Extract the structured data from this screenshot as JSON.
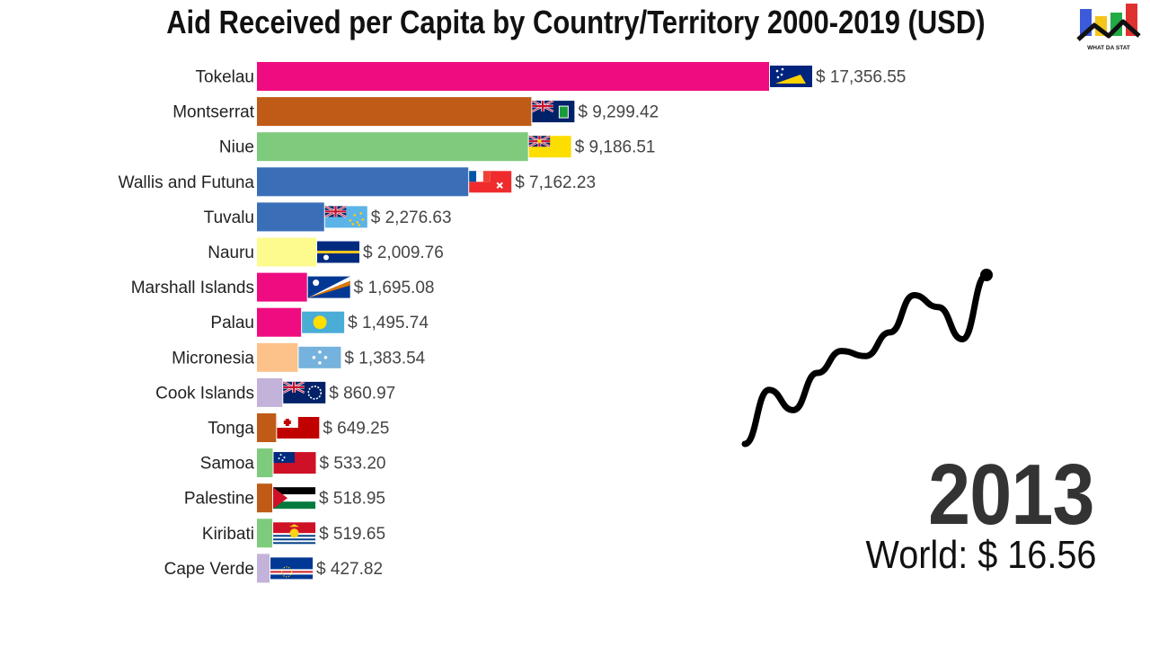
{
  "chart_data": {
    "type": "bar",
    "orientation": "horizontal",
    "title": "Aid Received per Capita by Country/Territory 2000-2019 (USD)",
    "xlim": [
      0,
      17356.55
    ],
    "grid": false,
    "categories": [
      "Tokelau",
      "Montserrat",
      "Niue",
      "Wallis and Futuna",
      "Tuvalu",
      "Nauru",
      "Marshall Islands",
      "Palau",
      "Micronesia",
      "Cook Islands",
      "Tonga",
      "Samoa",
      "Palestine",
      "Kiribati",
      "Cape Verde"
    ],
    "values": [
      17356.55,
      9299.42,
      9186.51,
      7162.23,
      2276.63,
      2009.76,
      1695.08,
      1495.74,
      1383.54,
      860.97,
      649.25,
      533.2,
      518.95,
      519.65,
      427.82
    ],
    "value_labels": [
      "$ 17,356.55",
      "$ 9,299.42",
      "$ 9,186.51",
      "$ 7,162.23",
      "$ 2,276.63",
      "$ 2,009.76",
      "$ 1,695.08",
      "$ 1,495.74",
      "$ 1,383.54",
      "$ 860.97",
      "$ 649.25",
      "$ 533.20",
      "$ 518.95",
      "$ 519.65",
      "$ 427.82"
    ],
    "bar_colors": [
      "#ee0c80",
      "#c05a17",
      "#7ecb7e",
      "#3a6fb8",
      "#3a6fb8",
      "#fdfb8e",
      "#ee0c80",
      "#ee0c80",
      "#fcc28a",
      "#c3b2d9",
      "#c05a17",
      "#7ecb7e",
      "#c05a17",
      "#7ecb7e",
      "#c3b2d9"
    ],
    "flags": [
      "tokelau",
      "montserrat",
      "niue",
      "wallis-and-futuna",
      "tuvalu",
      "nauru",
      "marshall-islands",
      "palau",
      "micronesia",
      "cook-islands",
      "tonga",
      "samoa",
      "palestine",
      "kiribati",
      "cape-verde"
    ],
    "year": "2013",
    "world": {
      "label": "World:",
      "value": "$ 16.56"
    },
    "world_trend": [
      0.0,
      0.32,
      0.2,
      0.42,
      0.55,
      0.52,
      0.66,
      0.88,
      0.81,
      0.62,
      1.0
    ]
  },
  "logo": {
    "text": "WHAT DA STAT",
    "icon": "bar-chart-logo-icon",
    "colors": [
      "#3b5bdb",
      "#f5c518",
      "#22aa44",
      "#e03131"
    ]
  }
}
